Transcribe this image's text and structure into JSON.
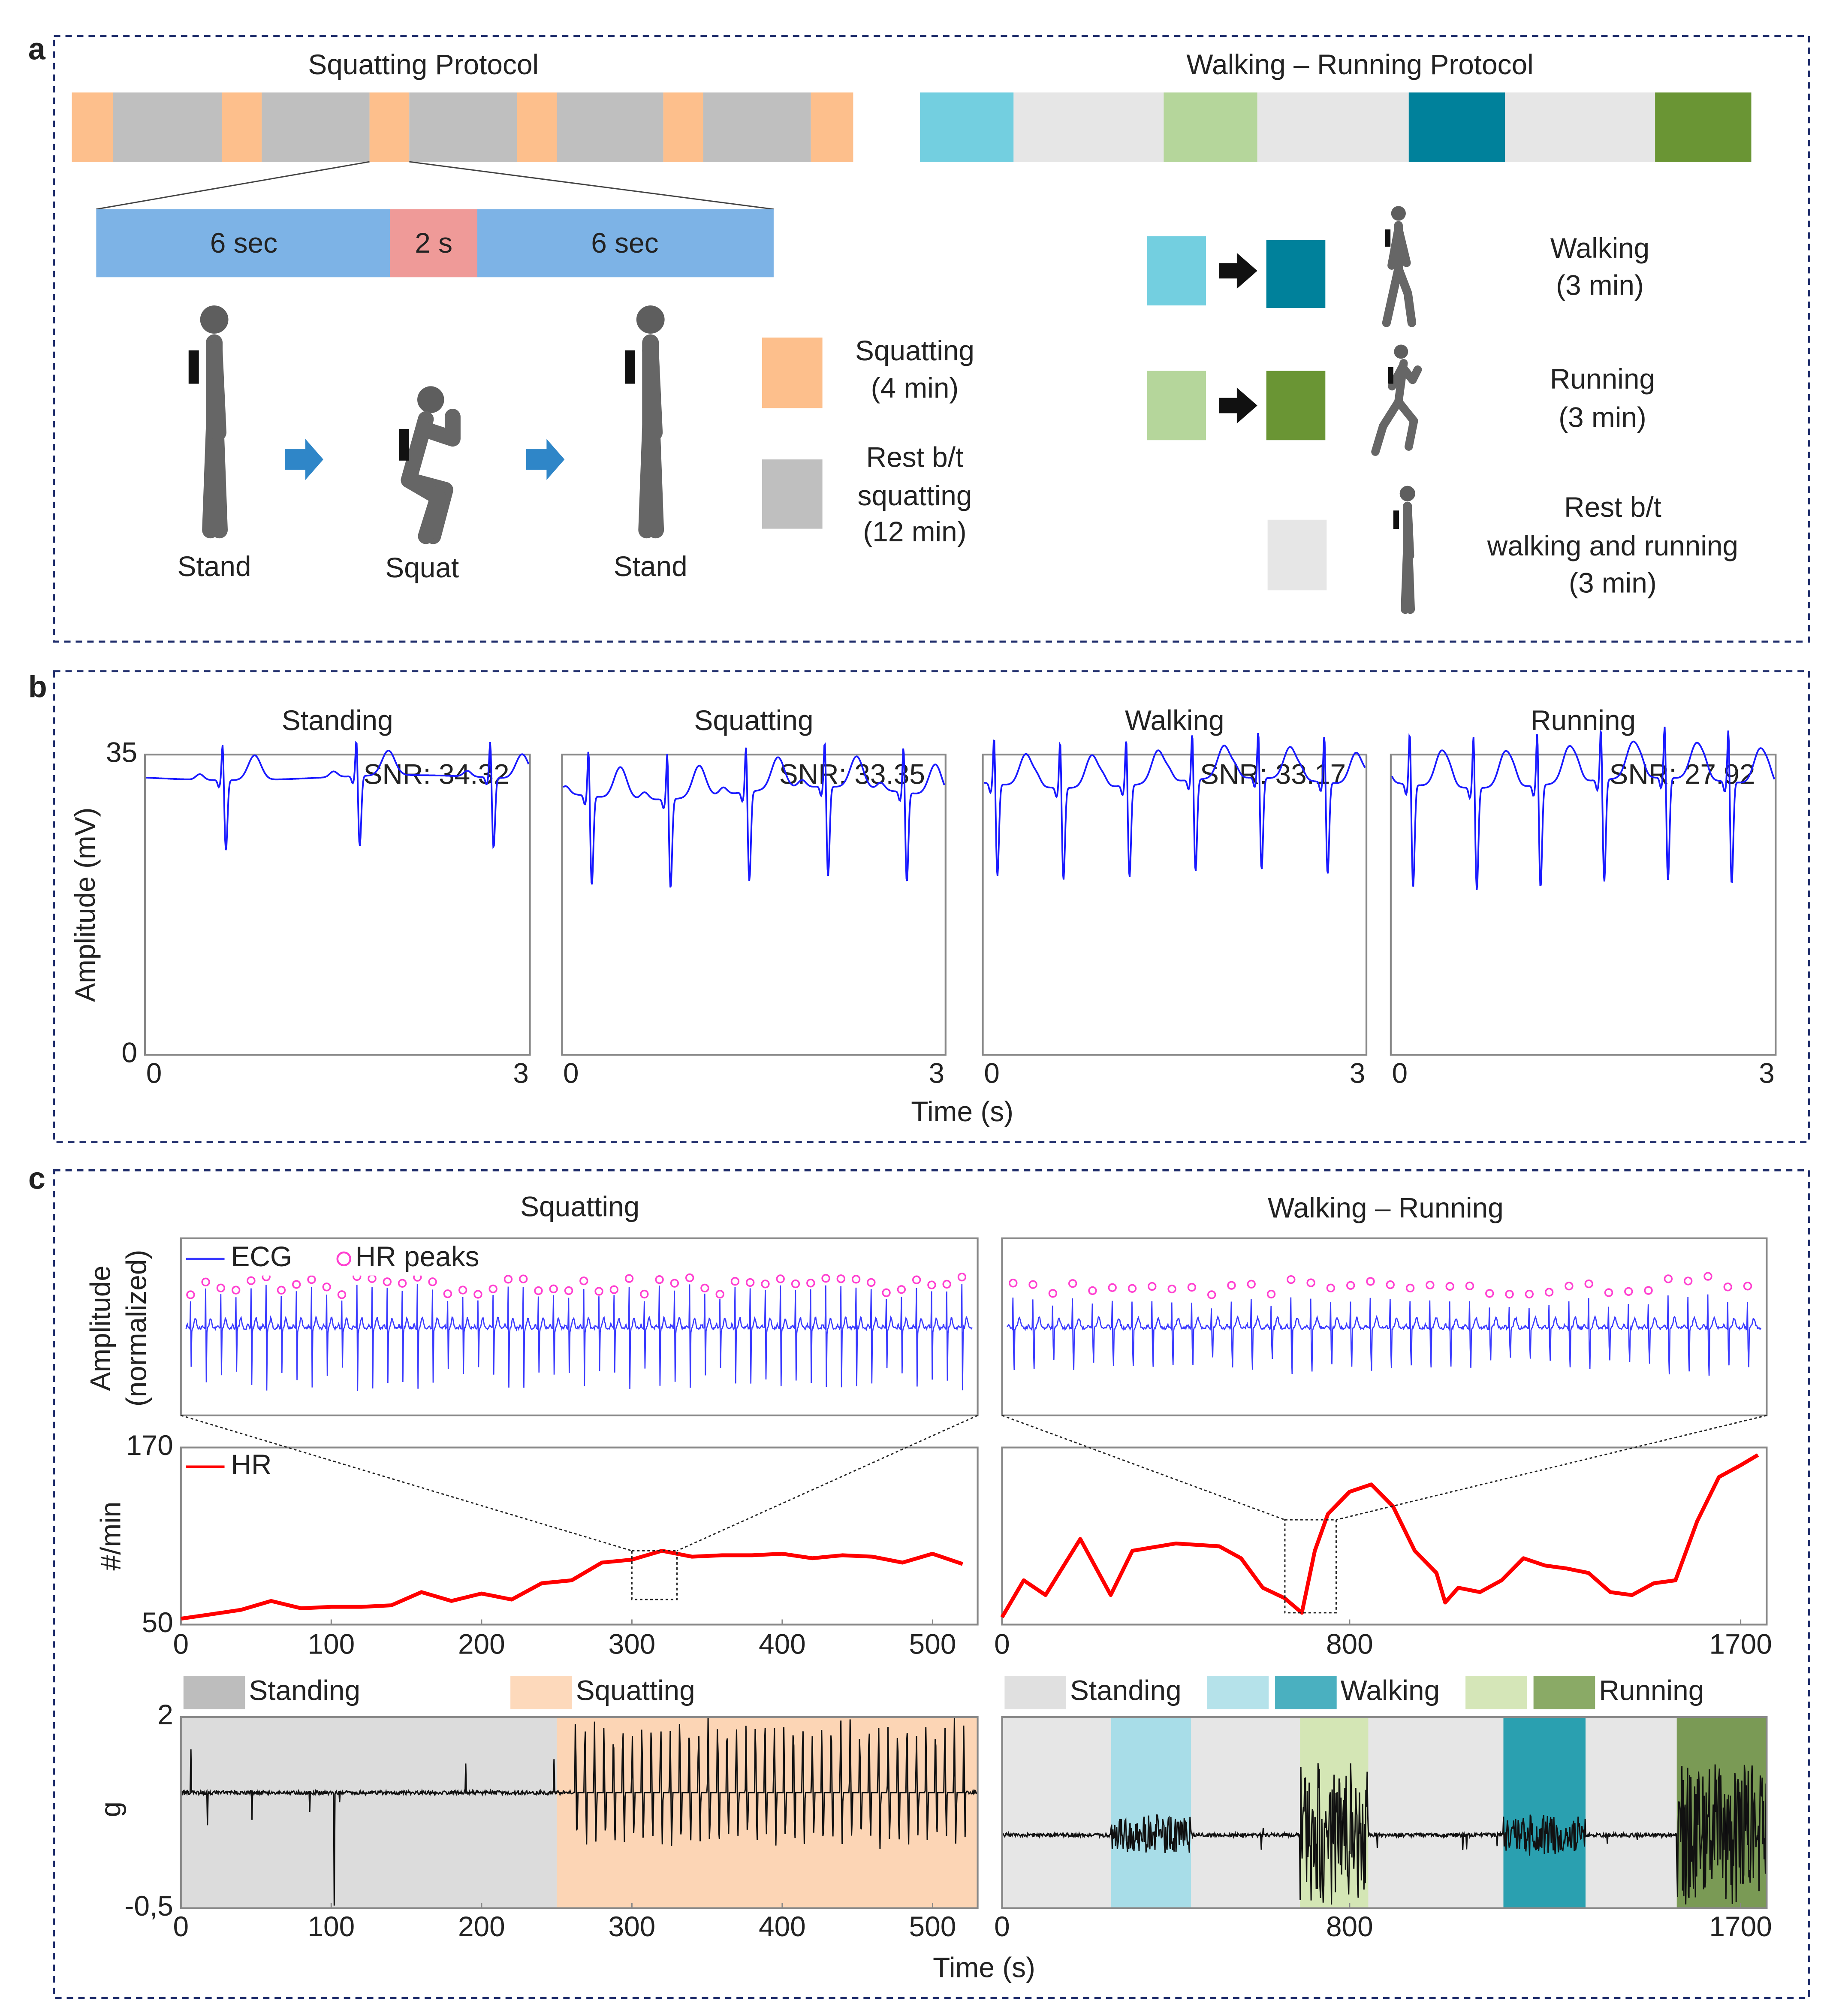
{
  "panel_a": {
    "label": "a",
    "squatting": {
      "title": "Squatting Protocol",
      "phases": [
        "6 sec",
        "2 s",
        "6 sec"
      ],
      "poses": [
        "Stand",
        "Squat",
        "Stand"
      ],
      "legend": [
        {
          "lines": [
            "Squatting",
            "(4 min)"
          ]
        },
        {
          "lines": [
            "Rest b/t",
            "squatting",
            "(12 min)"
          ]
        }
      ]
    },
    "walking_running": {
      "title": "Walking – Running Protocol",
      "legend": [
        {
          "lines": [
            "Walking",
            "(3 min)"
          ]
        },
        {
          "lines": [
            "Running",
            "(3 min)"
          ]
        },
        {
          "lines": [
            "Rest b/t",
            "walking and running",
            "(3 min)"
          ]
        }
      ]
    }
  },
  "panel_b": {
    "label": "b",
    "ylabel": "Amplitude (mV)",
    "xlabel": "Time (s)",
    "ylim": [
      0,
      35
    ],
    "yticks": [
      0,
      35
    ],
    "xlim": [
      0,
      3
    ],
    "xticks": [
      0,
      3
    ],
    "plots": [
      {
        "title": "Standing",
        "snr": "SNR: 34.32"
      },
      {
        "title": "Squatting",
        "snr": "SNR: 33.35"
      },
      {
        "title": "Walking",
        "snr": "SNR: 33.17"
      },
      {
        "title": "Running",
        "snr": "SNR: 27.92"
      }
    ]
  },
  "panel_c": {
    "label": "c",
    "xlabel": "Time (s)",
    "ecg_ylabel": [
      "Amplitude",
      "(normalized)"
    ],
    "ecg_legend": [
      "ECG",
      "HR peaks"
    ],
    "squatting": {
      "title": "Squatting",
      "hr": {
        "legend": "HR",
        "ylabel": "#/min",
        "color": "#ff0000",
        "ylim": [
          50,
          170
        ],
        "yticks": [
          50,
          170
        ],
        "xlim": [
          0,
          530
        ],
        "xticks": [
          0,
          100,
          200,
          300,
          400,
          500
        ],
        "x": [
          0,
          20,
          40,
          60,
          80,
          100,
          120,
          140,
          160,
          180,
          200,
          220,
          240,
          260,
          280,
          300,
          320,
          340,
          360,
          380,
          400,
          420,
          440,
          460,
          480,
          500,
          520
        ],
        "values": [
          54,
          57,
          60,
          66,
          61,
          62,
          62,
          63,
          72,
          66,
          71,
          67,
          78,
          80,
          92,
          94,
          100,
          96,
          97,
          97,
          98,
          95,
          97,
          96,
          92,
          98,
          91
        ],
        "zoom": {
          "x": [
            300,
            330
          ],
          "y": [
            67,
            100
          ]
        }
      },
      "accel": {
        "ylabel": "g",
        "ylim": [
          -0.5,
          2
        ],
        "yticks": [
          {
            "value": -0.5,
            "label": "-0,5"
          },
          2
        ],
        "xlim": [
          0,
          530
        ],
        "xticks": [
          0,
          100,
          200,
          300,
          400,
          500
        ],
        "legend": [
          {
            "name": "Standing",
            "colors": [
              "#bdbdbd"
            ]
          },
          {
            "name": "Squatting",
            "colors": [
              "#fdd9bb"
            ]
          }
        ],
        "regions": [
          {
            "legend": 0,
            "color": "#dcdcdc",
            "range": [
              0,
              250
            ]
          },
          {
            "legend": 1,
            "color": "#fcd5b5",
            "range": [
              250,
              530
            ]
          }
        ]
      }
    },
    "walking_running": {
      "title": "Walking – Running",
      "hr": {
        "ylim": [
          50,
          170
        ],
        "xlim": [
          0,
          1760
        ],
        "xticks": [
          0,
          800,
          1700
        ],
        "color": "#ff0000",
        "x": [
          0,
          50,
          100,
          180,
          250,
          300,
          400,
          500,
          550,
          600,
          650,
          690,
          720,
          750,
          800,
          850,
          900,
          950,
          1000,
          1020,
          1050,
          1100,
          1150,
          1200,
          1250,
          1300,
          1350,
          1400,
          1450,
          1500,
          1550,
          1600,
          1650,
          1700,
          1740
        ],
        "values": [
          55,
          80,
          70,
          108,
          70,
          100,
          105,
          103,
          95,
          75,
          68,
          58,
          100,
          125,
          140,
          145,
          130,
          100,
          85,
          65,
          75,
          72,
          80,
          95,
          90,
          88,
          85,
          72,
          70,
          78,
          80,
          120,
          150,
          158,
          165
        ],
        "zoom": {
          "x": [
            651,
            769
          ],
          "y": [
            58,
            121
          ]
        }
      },
      "accel": {
        "xlim": [
          0,
          1760
        ],
        "xticks": [
          0,
          800,
          1700
        ],
        "legend": [
          {
            "name": "Standing",
            "colors": [
              "#e0e0e0"
            ]
          },
          {
            "name": "Walking",
            "colors": [
              "#b5e2ea",
              "#4ab0c0"
            ]
          },
          {
            "name": "Running",
            "colors": [
              "#d5e6b8",
              "#8aaa66"
            ]
          }
        ],
        "regions": [
          {
            "legend": 0,
            "color": "#e6e6e6",
            "range": [
              0,
              1760
            ]
          },
          {
            "legend": 1,
            "color": "#a8dde8",
            "range": [
              251,
              435
            ]
          },
          {
            "legend": 2,
            "color": "#d4e6b5",
            "range": [
              686,
              843
            ]
          },
          {
            "legend": 1,
            "color": "#2aa0b0",
            "range": [
              1154,
              1343
            ]
          },
          {
            "legend": 2,
            "color": "#7a9a55",
            "range": [
              1553,
              1760
            ]
          }
        ]
      }
    }
  }
}
